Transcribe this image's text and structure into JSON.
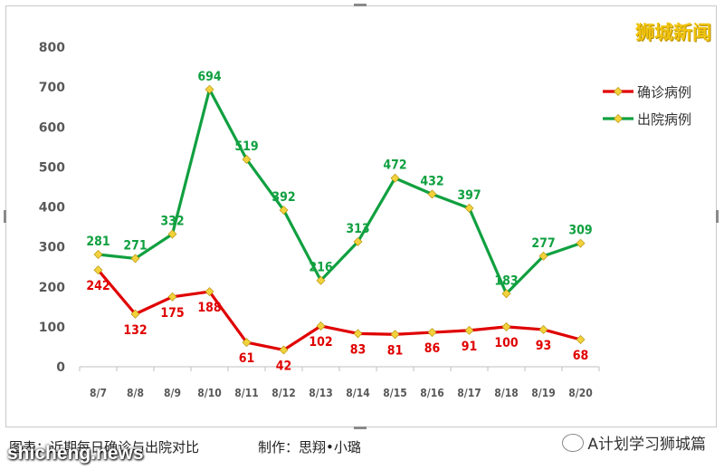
{
  "watermark": "狮城新闻",
  "caption": "图表：近期每日确诊与出院对比",
  "author": "制作：思翔•小璐",
  "brand": "shicheng.news",
  "wechat": {
    "label": "A计划学习狮城篇",
    "icon": "wechat-icon"
  },
  "colors": {
    "confirmed": "#e00000",
    "discharged": "#10a040",
    "marker": "#f2d23c",
    "axis_text": "#595959",
    "gridline": "#bfbfbf"
  },
  "chart_data": {
    "type": "line",
    "categories": [
      "8/7",
      "8/8",
      "8/9",
      "8/10",
      "8/11",
      "8/12",
      "8/13",
      "8/14",
      "8/15",
      "8/16",
      "8/17",
      "8/18",
      "8/19",
      "8/20"
    ],
    "ylim": [
      0,
      800
    ],
    "yticks": [
      "0",
      "100",
      "200",
      "300",
      "400",
      "500",
      "600",
      "700",
      "800"
    ],
    "legend_position": "right",
    "grid": false,
    "series": [
      {
        "name": "确诊病例",
        "color": "#e00000",
        "values": [
          242,
          132,
          175,
          188,
          61,
          42,
          102,
          83,
          81,
          86,
          91,
          100,
          93,
          68
        ]
      },
      {
        "name": "出院病例",
        "color": "#10a040",
        "values": [
          281,
          271,
          332,
          694,
          519,
          392,
          216,
          313,
          472,
          432,
          397,
          183,
          277,
          309
        ]
      }
    ]
  }
}
